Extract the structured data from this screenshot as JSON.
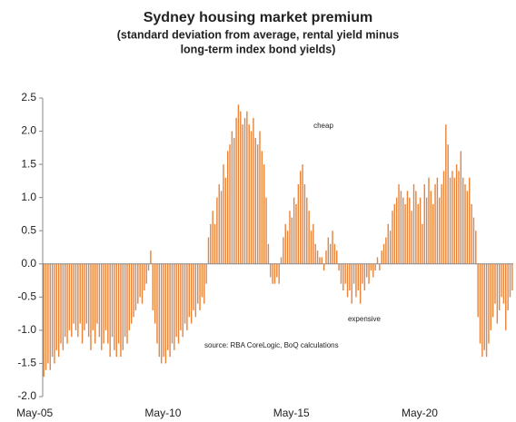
{
  "chart_data": {
    "type": "bar",
    "title": "Sydney housing market premium",
    "subtitle": [
      "(standard deviation from average, rental yield minus",
      "long-term index bond yields)"
    ],
    "annotations": {
      "cheap": "cheap",
      "expensive": "expensive",
      "source": "source:  RBA CoreLogic,  BoQ calculations"
    },
    "color": "#e8833a",
    "annotation_color": "#6ab04c",
    "ylim": [
      -2.0,
      2.5
    ],
    "yticks": [
      2.5,
      {
        "value": 2.0,
        "label": "2.0"
      },
      1.5,
      {
        "value": 1.0,
        "label": "1.0"
      },
      0.5,
      {
        "value": 0.0,
        "label": "0.0"
      },
      -0.5,
      {
        "value": -1.0,
        "label": "-1.0"
      },
      -1.5,
      {
        "value": -2.0,
        "label": "-2.0"
      }
    ],
    "categories": [
      "May-05",
      null,
      null,
      null,
      null,
      null,
      null,
      null,
      null,
      null,
      null,
      null,
      null,
      null,
      null,
      null,
      null,
      null,
      null,
      null,
      null,
      null,
      null,
      null,
      null,
      null,
      null,
      null,
      null,
      null,
      null,
      null,
      null,
      null,
      null,
      null,
      null,
      null,
      null,
      null,
      null,
      null,
      null,
      null,
      null,
      null,
      null,
      null,
      null,
      null,
      null,
      null,
      null,
      null,
      null,
      null,
      null,
      null,
      null,
      null,
      "May-10",
      null,
      null,
      null,
      null,
      null,
      null,
      null,
      null,
      null,
      null,
      null,
      null,
      null,
      null,
      null,
      null,
      null,
      null,
      null,
      null,
      null,
      null,
      null,
      null,
      null,
      null,
      null,
      null,
      null,
      null,
      null,
      null,
      null,
      null,
      null,
      null,
      null,
      null,
      null,
      null,
      null,
      null,
      null,
      null,
      null,
      null,
      null,
      null,
      null,
      null,
      null,
      null,
      null,
      null,
      null,
      null,
      null,
      null,
      null,
      "May-15",
      null,
      null,
      null,
      null,
      null,
      null,
      null,
      null,
      null,
      null,
      null,
      null,
      null,
      null,
      null,
      null,
      null,
      null,
      null,
      null,
      null,
      null,
      null,
      null,
      null,
      null,
      null,
      null,
      null,
      null,
      null,
      null,
      null,
      null,
      null,
      null,
      null,
      null,
      null,
      null,
      null,
      null,
      null,
      null,
      null,
      null,
      null,
      null,
      null,
      null,
      null,
      null,
      null,
      null,
      null,
      null,
      null,
      null,
      null,
      "May-20",
      null,
      null,
      null,
      null,
      null,
      null,
      null,
      null,
      null,
      null,
      null,
      null,
      null,
      null,
      null,
      null,
      null,
      null,
      null,
      null,
      null,
      null,
      null,
      null,
      null,
      null,
      null,
      null,
      null,
      null,
      null,
      null,
      null,
      null,
      null,
      null,
      null,
      null,
      null
    ],
    "values": [
      -1.7,
      -1.6,
      -1.5,
      -1.6,
      -1.4,
      -1.5,
      -1.3,
      -1.4,
      -1.2,
      -1.3,
      -1.1,
      -1.2,
      -1.0,
      -1.1,
      -0.9,
      -1.0,
      -1.1,
      -0.9,
      -1.2,
      -1.0,
      -0.9,
      -1.1,
      -1.3,
      -1.0,
      -1.2,
      -0.9,
      -1.1,
      -1.3,
      -1.2,
      -1.0,
      -1.2,
      -1.4,
      -1.1,
      -1.3,
      -1.4,
      -1.2,
      -1.4,
      -1.3,
      -1.1,
      -1.2,
      -1.0,
      -0.9,
      -0.8,
      -0.7,
      -0.6,
      -0.5,
      -0.6,
      -0.4,
      -0.3,
      -0.1,
      0.2,
      -0.7,
      -0.9,
      -1.2,
      -1.4,
      -1.5,
      -1.4,
      -1.5,
      -1.3,
      -1.4,
      -1.2,
      -1.3,
      -1.1,
      -1.2,
      -1.0,
      -1.1,
      -0.9,
      -1.0,
      -0.8,
      -0.9,
      -0.7,
      -0.8,
      -0.6,
      -0.7,
      -0.5,
      -0.6,
      -0.3,
      0.4,
      0.6,
      0.8,
      0.6,
      1.0,
      1.2,
      1.1,
      1.5,
      1.3,
      1.7,
      1.8,
      2.0,
      1.9,
      2.2,
      2.4,
      2.3,
      2.1,
      2.2,
      2.3,
      2.1,
      2.0,
      2.2,
      1.9,
      1.8,
      2.0,
      1.7,
      1.5,
      1.0,
      0.3,
      -0.2,
      -0.3,
      -0.3,
      -0.2,
      -0.3,
      0.1,
      0.4,
      0.6,
      0.5,
      0.8,
      0.7,
      1.0,
      0.9,
      1.2,
      1.4,
      1.5,
      1.2,
      1.0,
      0.8,
      0.5,
      0.6,
      0.3,
      0.2,
      0.1,
      0.1,
      -0.1,
      0.2,
      0.4,
      0.3,
      0.5,
      0.3,
      0.2,
      -0.1,
      -0.3,
      -0.4,
      -0.3,
      -0.5,
      -0.4,
      -0.6,
      -0.3,
      -0.5,
      -0.4,
      -0.6,
      -0.3,
      -0.4,
      -0.2,
      -0.3,
      -0.1,
      -0.2,
      -0.1,
      0.1,
      -0.1,
      0.2,
      0.3,
      0.4,
      0.6,
      0.5,
      0.8,
      0.9,
      1.0,
      1.2,
      1.1,
      1.0,
      0.9,
      1.1,
      1.0,
      0.8,
      1.2,
      1.1,
      0.9,
      1.0,
      0.6,
      1.2,
      1.0,
      1.3,
      1.1,
      0.9,
      1.2,
      1.3,
      1.0,
      1.2,
      1.4,
      2.1,
      1.8,
      1.3,
      1.4,
      1.3,
      1.5,
      1.4,
      1.7,
      1.3,
      1.2,
      1.1,
      1.3,
      0.9,
      0.7,
      0.5,
      -0.8,
      -1.2,
      -1.4,
      -1.3,
      -1.4,
      -1.2,
      -1.0,
      -0.8,
      -0.6,
      -0.9,
      -0.7,
      -0.5,
      -0.6,
      -1.0,
      -0.7,
      -0.5,
      -0.4
    ]
  }
}
